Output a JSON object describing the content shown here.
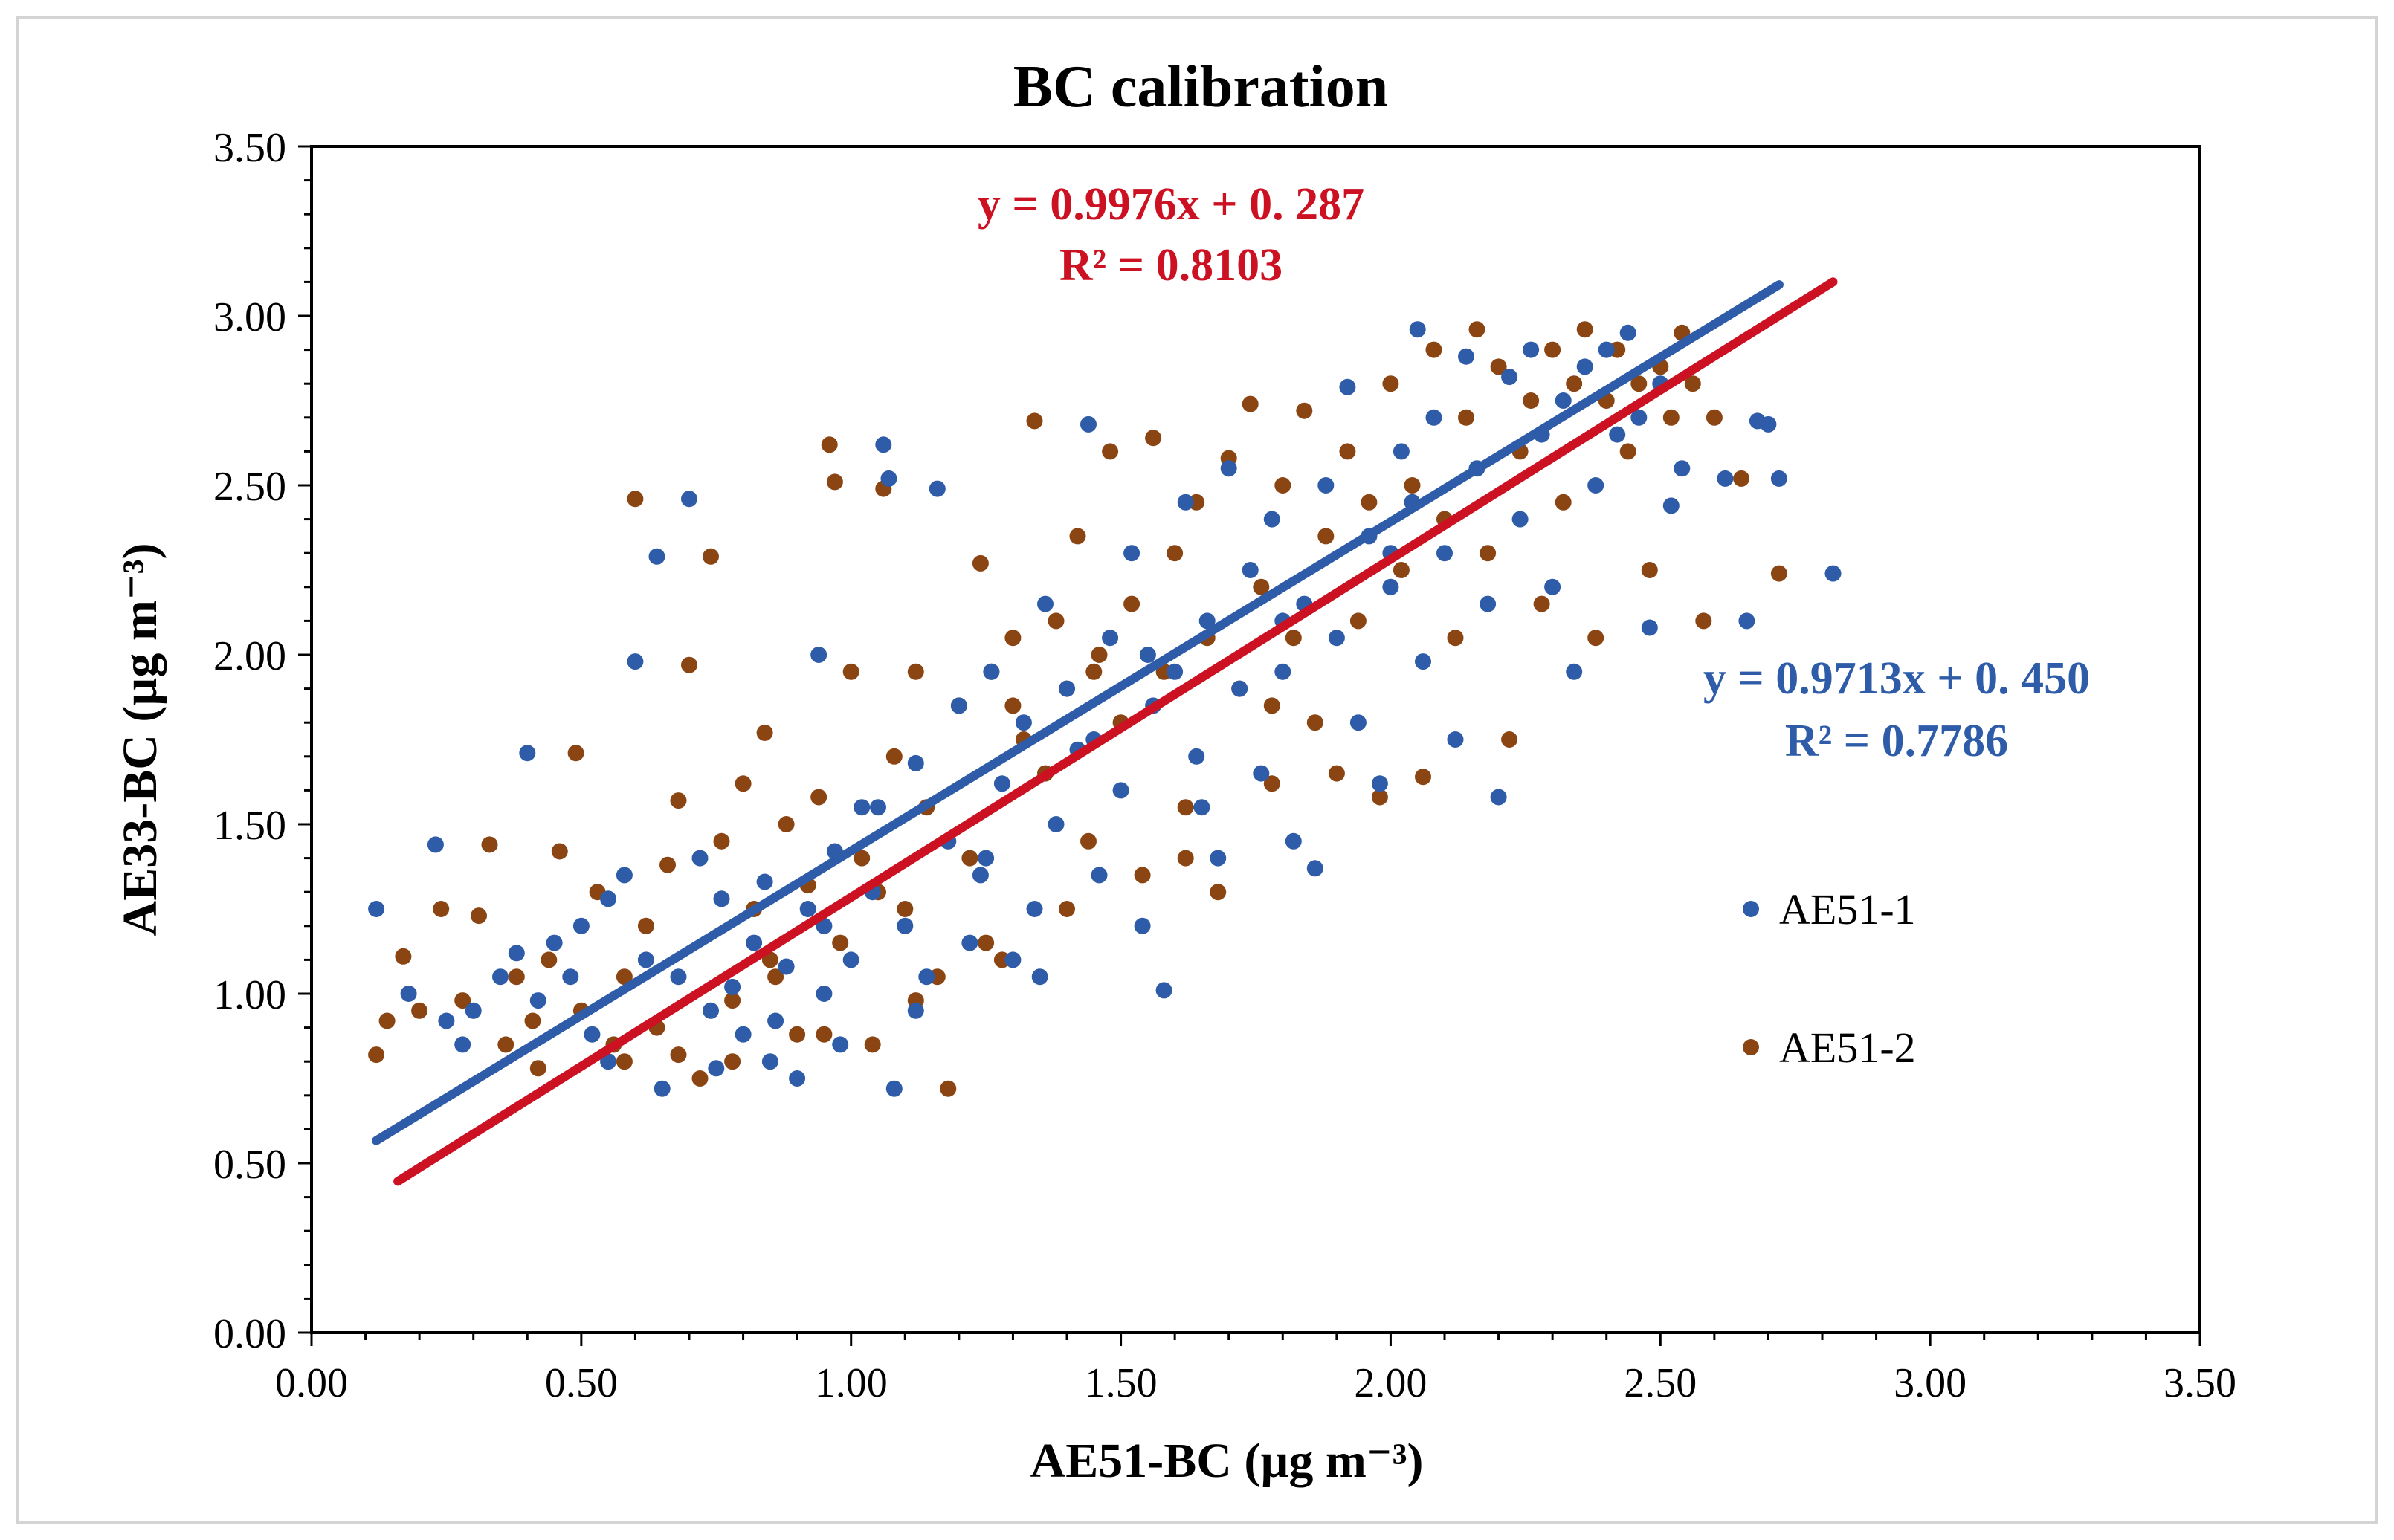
{
  "chart_data": {
    "type": "scatter",
    "title": "BC calibration",
    "xlabel": "AE51-BC (µg m⁻³)",
    "ylabel": "AE33-BC (µg m⁻³)",
    "xlim": [
      0,
      3.5
    ],
    "ylim": [
      0,
      3.5
    ],
    "x_ticks": [
      "0.00",
      "0.50",
      "1.00",
      "1.50",
      "2.00",
      "2.50",
      "3.00",
      "3.50"
    ],
    "y_ticks": [
      "0.00",
      "0.50",
      "1.00",
      "1.50",
      "2.00",
      "2.50",
      "3.00",
      "3.50"
    ],
    "x_tick_values": [
      0,
      0.5,
      1,
      1.5,
      2,
      2.5,
      3,
      3.5
    ],
    "y_tick_values": [
      0,
      0.5,
      1,
      1.5,
      2,
      2.5,
      3,
      3.5
    ],
    "grid": false,
    "legend_position": "right",
    "series": [
      {
        "name": "AE51-1",
        "color": "#2e5ca8",
        "marker": "circle",
        "points": [
          [
            0.12,
            1.25
          ],
          [
            0.23,
            1.44
          ],
          [
            0.18,
            1.0
          ],
          [
            0.25,
            0.92
          ],
          [
            0.3,
            0.95
          ],
          [
            0.35,
            1.05
          ],
          [
            0.38,
            1.12
          ],
          [
            0.4,
            1.71
          ],
          [
            0.42,
            0.98
          ],
          [
            0.45,
            1.15
          ],
          [
            0.48,
            1.05
          ],
          [
            0.5,
            1.2
          ],
          [
            0.52,
            0.88
          ],
          [
            0.55,
            1.28
          ],
          [
            0.58,
            1.35
          ],
          [
            0.6,
            1.98
          ],
          [
            0.62,
            1.1
          ],
          [
            0.64,
            2.29
          ],
          [
            0.65,
            0.72
          ],
          [
            0.68,
            1.05
          ],
          [
            0.7,
            2.46
          ],
          [
            0.72,
            1.4
          ],
          [
            0.74,
            0.95
          ],
          [
            0.76,
            1.28
          ],
          [
            0.78,
            1.02
          ],
          [
            0.8,
            0.88
          ],
          [
            0.82,
            1.15
          ],
          [
            0.84,
            1.33
          ],
          [
            0.86,
            0.92
          ],
          [
            0.88,
            1.08
          ],
          [
            0.9,
            0.75
          ],
          [
            0.92,
            1.25
          ],
          [
            0.94,
            2.0
          ],
          [
            0.95,
            1.0
          ],
          [
            0.97,
            1.42
          ],
          [
            0.98,
            0.85
          ],
          [
            1.0,
            1.1
          ],
          [
            1.02,
            1.55
          ],
          [
            1.04,
            1.3
          ],
          [
            1.06,
            2.62
          ],
          [
            1.07,
            2.52
          ],
          [
            1.08,
            0.72
          ],
          [
            1.1,
            1.2
          ],
          [
            1.12,
            1.68
          ],
          [
            1.14,
            1.05
          ],
          [
            1.16,
            2.49
          ],
          [
            1.18,
            1.45
          ],
          [
            1.2,
            1.85
          ],
          [
            1.22,
            1.15
          ],
          [
            1.24,
            1.35
          ],
          [
            1.26,
            1.95
          ],
          [
            1.28,
            1.62
          ],
          [
            1.3,
            1.1
          ],
          [
            1.32,
            1.8
          ],
          [
            1.34,
            1.25
          ],
          [
            1.36,
            2.15
          ],
          [
            1.38,
            1.5
          ],
          [
            1.4,
            1.9
          ],
          [
            1.42,
            1.72
          ],
          [
            1.44,
            2.68
          ],
          [
            1.46,
            1.35
          ],
          [
            1.48,
            2.05
          ],
          [
            1.5,
            1.6
          ],
          [
            1.52,
            2.3
          ],
          [
            1.54,
            1.2
          ],
          [
            1.56,
            1.85
          ],
          [
            1.58,
            1.01
          ],
          [
            1.6,
            1.95
          ],
          [
            1.62,
            2.45
          ],
          [
            1.64,
            1.7
          ],
          [
            1.66,
            2.1
          ],
          [
            1.68,
            1.4
          ],
          [
            1.7,
            2.55
          ],
          [
            1.72,
            1.9
          ],
          [
            1.74,
            2.25
          ],
          [
            1.76,
            1.65
          ],
          [
            1.78,
            2.4
          ],
          [
            1.8,
            1.95
          ],
          [
            1.82,
            1.45
          ],
          [
            1.84,
            2.15
          ],
          [
            1.86,
            1.37
          ],
          [
            1.88,
            2.5
          ],
          [
            1.9,
            2.05
          ],
          [
            1.92,
            2.79
          ],
          [
            1.94,
            1.8
          ],
          [
            1.96,
            2.35
          ],
          [
            1.98,
            1.62
          ],
          [
            2.0,
            2.2
          ],
          [
            2.02,
            2.6
          ],
          [
            2.04,
            2.45
          ],
          [
            2.05,
            2.96
          ],
          [
            2.06,
            1.98
          ],
          [
            2.08,
            2.7
          ],
          [
            2.1,
            2.3
          ],
          [
            2.12,
            1.75
          ],
          [
            2.14,
            2.88
          ],
          [
            2.16,
            2.55
          ],
          [
            2.18,
            2.15
          ],
          [
            2.2,
            1.58
          ],
          [
            2.22,
            2.82
          ],
          [
            2.24,
            2.4
          ],
          [
            2.26,
            2.9
          ],
          [
            2.28,
            2.65
          ],
          [
            2.3,
            2.2
          ],
          [
            2.32,
            2.75
          ],
          [
            2.34,
            1.95
          ],
          [
            2.36,
            2.85
          ],
          [
            2.38,
            2.5
          ],
          [
            2.4,
            2.9
          ],
          [
            2.42,
            2.65
          ],
          [
            2.44,
            2.95
          ],
          [
            2.46,
            2.7
          ],
          [
            2.48,
            2.08
          ],
          [
            2.5,
            2.8
          ],
          [
            2.52,
            2.44
          ],
          [
            2.54,
            2.55
          ],
          [
            2.62,
            2.52
          ],
          [
            2.66,
            2.1
          ],
          [
            2.68,
            2.69
          ],
          [
            2.7,
            2.68
          ],
          [
            2.72,
            2.52
          ],
          [
            2.82,
            2.24
          ],
          [
            0.28,
            0.85
          ],
          [
            0.55,
            0.8
          ],
          [
            0.75,
            0.78
          ],
          [
            0.85,
            0.8
          ],
          [
            1.12,
            0.95
          ],
          [
            1.35,
            1.05
          ],
          [
            1.05,
            1.55
          ],
          [
            1.45,
            1.75
          ],
          [
            1.65,
            1.55
          ],
          [
            1.8,
            2.1
          ],
          [
            0.95,
            1.2
          ],
          [
            1.25,
            1.4
          ],
          [
            1.55,
            2.0
          ],
          [
            2.0,
            2.3
          ]
        ]
      },
      {
        "name": "AE51-2",
        "color": "#8b4513",
        "marker": "circle",
        "points": [
          [
            0.12,
            0.82
          ],
          [
            0.14,
            0.92
          ],
          [
            0.17,
            1.11
          ],
          [
            0.2,
            0.95
          ],
          [
            0.24,
            1.25
          ],
          [
            0.28,
            0.98
          ],
          [
            0.31,
            1.23
          ],
          [
            0.33,
            1.44
          ],
          [
            0.36,
            0.85
          ],
          [
            0.38,
            1.05
          ],
          [
            0.41,
            0.92
          ],
          [
            0.44,
            1.1
          ],
          [
            0.46,
            1.42
          ],
          [
            0.49,
            1.71
          ],
          [
            0.5,
            0.95
          ],
          [
            0.53,
            1.3
          ],
          [
            0.56,
            0.85
          ],
          [
            0.58,
            1.05
          ],
          [
            0.6,
            2.46
          ],
          [
            0.62,
            1.2
          ],
          [
            0.64,
            0.9
          ],
          [
            0.66,
            1.38
          ],
          [
            0.68,
            1.57
          ],
          [
            0.7,
            1.97
          ],
          [
            0.72,
            0.75
          ],
          [
            0.74,
            2.29
          ],
          [
            0.76,
            1.45
          ],
          [
            0.78,
            0.98
          ],
          [
            0.8,
            1.62
          ],
          [
            0.82,
            1.25
          ],
          [
            0.84,
            1.77
          ],
          [
            0.86,
            1.05
          ],
          [
            0.88,
            1.5
          ],
          [
            0.9,
            0.88
          ],
          [
            0.92,
            1.32
          ],
          [
            0.94,
            1.58
          ],
          [
            0.96,
            2.62
          ],
          [
            0.97,
            2.51
          ],
          [
            0.98,
            1.15
          ],
          [
            1.0,
            1.95
          ],
          [
            1.02,
            1.4
          ],
          [
            1.04,
            0.85
          ],
          [
            1.06,
            2.49
          ],
          [
            1.08,
            1.7
          ],
          [
            1.1,
            1.25
          ],
          [
            1.12,
            1.95
          ],
          [
            1.14,
            1.55
          ],
          [
            1.16,
            1.05
          ],
          [
            1.18,
            0.72
          ],
          [
            1.2,
            1.85
          ],
          [
            1.22,
            1.4
          ],
          [
            1.24,
            2.27
          ],
          [
            1.26,
            1.95
          ],
          [
            1.28,
            1.1
          ],
          [
            1.3,
            2.05
          ],
          [
            1.32,
            1.75
          ],
          [
            1.34,
            2.69
          ],
          [
            1.36,
            1.65
          ],
          [
            1.38,
            2.1
          ],
          [
            1.4,
            1.9
          ],
          [
            1.42,
            2.35
          ],
          [
            1.44,
            1.45
          ],
          [
            1.46,
            2.0
          ],
          [
            1.48,
            2.6
          ],
          [
            1.5,
            1.8
          ],
          [
            1.52,
            2.15
          ],
          [
            1.54,
            1.35
          ],
          [
            1.56,
            2.64
          ],
          [
            1.58,
            1.95
          ],
          [
            1.6,
            2.3
          ],
          [
            1.62,
            1.55
          ],
          [
            1.64,
            2.45
          ],
          [
            1.66,
            2.05
          ],
          [
            1.68,
            1.3
          ],
          [
            1.7,
            2.58
          ],
          [
            1.72,
            1.9
          ],
          [
            1.74,
            2.74
          ],
          [
            1.76,
            2.2
          ],
          [
            1.78,
            1.85
          ],
          [
            1.8,
            2.5
          ],
          [
            1.82,
            2.05
          ],
          [
            1.84,
            2.72
          ],
          [
            1.86,
            1.8
          ],
          [
            1.88,
            2.35
          ],
          [
            1.9,
            1.65
          ],
          [
            1.92,
            2.6
          ],
          [
            1.94,
            2.1
          ],
          [
            1.96,
            2.45
          ],
          [
            1.98,
            1.58
          ],
          [
            2.0,
            2.8
          ],
          [
            2.02,
            2.25
          ],
          [
            2.04,
            2.5
          ],
          [
            2.06,
            1.64
          ],
          [
            2.08,
            2.9
          ],
          [
            2.1,
            2.4
          ],
          [
            2.12,
            2.05
          ],
          [
            2.14,
            2.7
          ],
          [
            2.16,
            2.96
          ],
          [
            2.18,
            2.3
          ],
          [
            2.2,
            2.85
          ],
          [
            2.22,
            1.75
          ],
          [
            2.24,
            2.6
          ],
          [
            2.26,
            2.75
          ],
          [
            2.28,
            2.15
          ],
          [
            2.3,
            2.9
          ],
          [
            2.32,
            2.45
          ],
          [
            2.34,
            2.8
          ],
          [
            2.36,
            2.96
          ],
          [
            2.38,
            2.05
          ],
          [
            2.4,
            2.75
          ],
          [
            2.42,
            2.9
          ],
          [
            2.44,
            2.6
          ],
          [
            2.46,
            2.8
          ],
          [
            2.48,
            2.25
          ],
          [
            2.5,
            2.85
          ],
          [
            2.52,
            2.7
          ],
          [
            2.54,
            2.95
          ],
          [
            2.56,
            2.8
          ],
          [
            2.58,
            2.1
          ],
          [
            2.6,
            2.7
          ],
          [
            2.65,
            2.52
          ],
          [
            2.72,
            2.24
          ],
          [
            0.42,
            0.78
          ],
          [
            0.58,
            0.8
          ],
          [
            0.68,
            0.82
          ],
          [
            0.78,
            0.8
          ],
          [
            0.95,
            0.88
          ],
          [
            1.12,
            0.98
          ],
          [
            1.25,
            1.15
          ],
          [
            1.4,
            1.25
          ],
          [
            1.62,
            1.4
          ],
          [
            1.78,
            1.62
          ],
          [
            0.85,
            1.1
          ],
          [
            1.05,
            1.3
          ],
          [
            1.3,
            1.85
          ],
          [
            1.45,
            1.95
          ]
        ]
      }
    ],
    "trendlines": [
      {
        "series": "AE51-1",
        "color": "#2e5ca8",
        "slope": 0.9713,
        "intercept": 0.45,
        "x_range": [
          0.12,
          2.72
        ],
        "equation": "y = 0.9713x + 0. 450",
        "r2": "R² = 0.7786"
      },
      {
        "series": "AE51-2",
        "color": "#cc1122",
        "slope": 0.9976,
        "intercept": 0.287,
        "x_range": [
          0.16,
          2.82
        ],
        "equation": "y = 0.9976x + 0. 287",
        "r2": "R² = 0.8103"
      }
    ]
  }
}
